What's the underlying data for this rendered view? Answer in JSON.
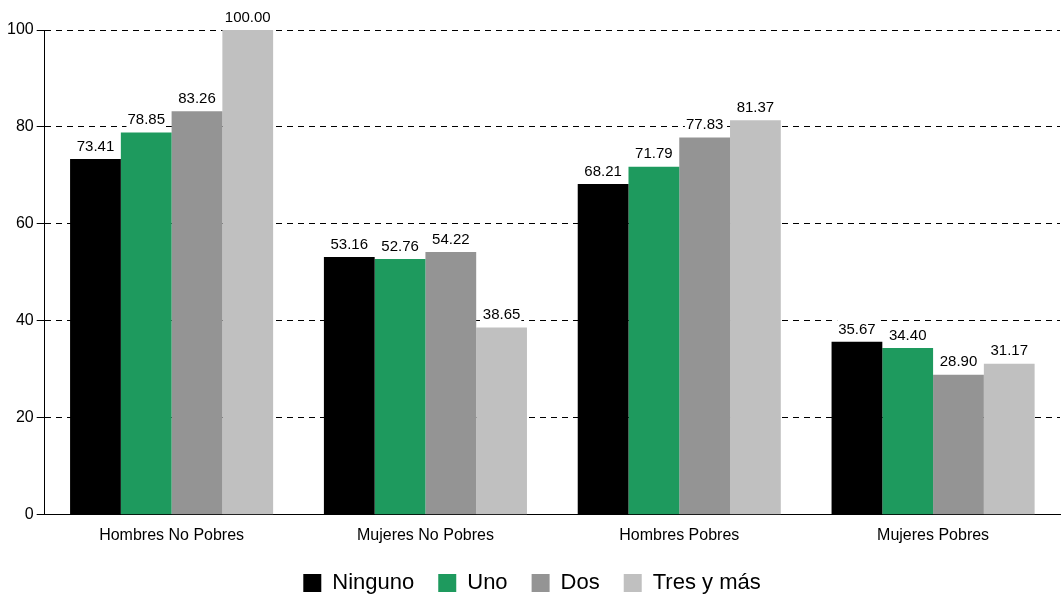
{
  "chart_data": {
    "type": "bar",
    "categories": [
      "Hombres No Pobres",
      "Mujeres No Pobres",
      "Hombres Pobres",
      "Mujeres Pobres"
    ],
    "series": [
      {
        "name": "Ninguno",
        "color": "#000000",
        "values": [
          73.41,
          53.16,
          68.21,
          35.67
        ],
        "value_labels": [
          "73.41",
          "53.16",
          "68.21",
          "35.67"
        ]
      },
      {
        "name": "Uno",
        "color": "#1e9a5e",
        "values": [
          78.85,
          52.76,
          71.79,
          34.4
        ],
        "value_labels": [
          "78.85",
          "52.76",
          "71.79",
          "34.40"
        ]
      },
      {
        "name": "Dos",
        "color": "#949494",
        "values": [
          83.26,
          54.22,
          77.83,
          28.9
        ],
        "value_labels": [
          "83.26",
          "54.22",
          "77.83",
          "28.90"
        ]
      },
      {
        "name": "Tres y más",
        "color": "#c0c0c0",
        "values": [
          100.0,
          38.65,
          81.37,
          31.17
        ],
        "value_labels": [
          "100.00",
          "38.65",
          "81.37",
          "31.17"
        ]
      }
    ],
    "ylim": [
      0,
      100
    ],
    "yticks": [
      0,
      20,
      40,
      60,
      80,
      100
    ],
    "grid": "y",
    "legend": "bottom"
  }
}
